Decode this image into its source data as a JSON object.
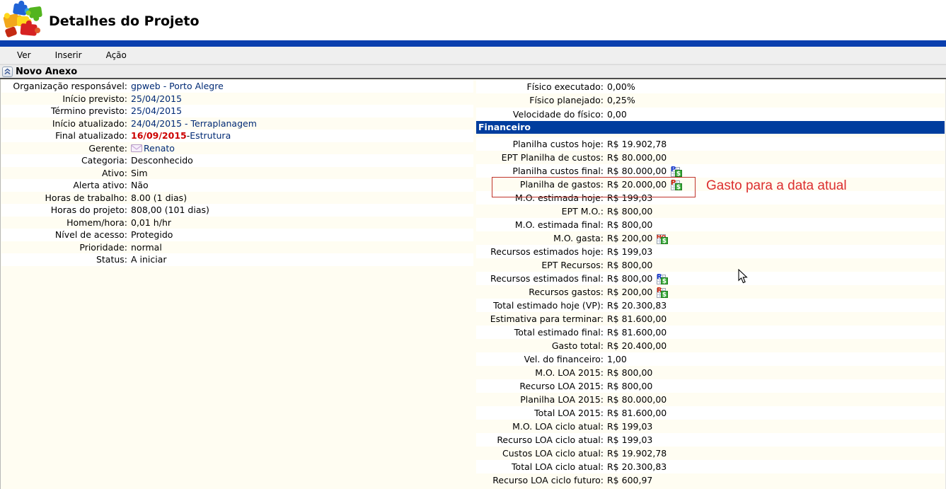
{
  "header": {
    "title": "Detalhes do Projeto"
  },
  "menu": {
    "items": [
      "Ver",
      "Inserir",
      "Ação"
    ]
  },
  "section": {
    "title": "Novo Anexo"
  },
  "project_info": {
    "rows": [
      {
        "label": "Organização responsável:",
        "segments": [
          {
            "text": "gpweb - Porto Alegre",
            "style": "link"
          }
        ]
      },
      {
        "label": "Início previsto:",
        "segments": [
          {
            "text": "25/04/2015",
            "style": "link"
          }
        ]
      },
      {
        "label": "Término previsto:",
        "segments": [
          {
            "text": "25/04/2015",
            "style": "link"
          }
        ]
      },
      {
        "label": "Início atualizado:",
        "segments": [
          {
            "text": "24/04/2015 - Terraplanagem",
            "style": "link"
          }
        ]
      },
      {
        "label": "Final atualizado:",
        "segments": [
          {
            "text": "16/09/2015",
            "style": "alert"
          },
          {
            "text": " - ",
            "style": "plain"
          },
          {
            "text": "Estrutura",
            "style": "link"
          }
        ]
      },
      {
        "label": "Gerente:",
        "segments": [
          {
            "icon": "mail-icon"
          },
          {
            "text": "Renato",
            "style": "link"
          }
        ]
      },
      {
        "label": "Categoria:",
        "segments": [
          {
            "text": "Desconhecido",
            "style": "plain"
          }
        ]
      },
      {
        "label": "Ativo:",
        "segments": [
          {
            "text": "Sim",
            "style": "plain"
          }
        ]
      },
      {
        "label": "Alerta ativo:",
        "segments": [
          {
            "text": "Não",
            "style": "plain"
          }
        ]
      },
      {
        "label": "Horas de trabalho:",
        "segments": [
          {
            "text": "8.00 (1 dias)",
            "style": "plain"
          }
        ]
      },
      {
        "label": "Horas do projeto:",
        "segments": [
          {
            "text": "808,00 (101 dias)",
            "style": "plain"
          }
        ]
      },
      {
        "label": "Homem/hora:",
        "segments": [
          {
            "text": "0,01 h/hr",
            "style": "plain"
          }
        ]
      },
      {
        "label": "Nível de acesso:",
        "segments": [
          {
            "text": "Protegido",
            "style": "plain"
          }
        ]
      },
      {
        "label": "Prioridade:",
        "segments": [
          {
            "text": "normal",
            "style": "plain"
          }
        ]
      },
      {
        "label": "Status:",
        "segments": [
          {
            "text": "A iniciar",
            "style": "plain"
          }
        ]
      }
    ]
  },
  "physical": {
    "rows": [
      {
        "label": "Físico executado:",
        "value": "0,00%"
      },
      {
        "label": "Físico planejado:",
        "value": "0,25%"
      },
      {
        "label": "Velocidade do físico:",
        "value": "0,00"
      }
    ]
  },
  "financial": {
    "section_title": "Financeiro",
    "rows": [
      {
        "label": "Planilha custos hoje:",
        "value": "R$ 19.902,78"
      },
      {
        "label": "EPT Planilha de custos:",
        "value": "R$ 80.000,00"
      },
      {
        "label": "Planilha custos final:",
        "value": "R$ 80.000,00",
        "icon": {
          "name": "planilha-final-sheet-icon",
          "letter": "P",
          "color": "#1f3fd4"
        }
      },
      {
        "label": "Planilha de gastos:",
        "value": "R$ 20.000,00",
        "icon": {
          "name": "planilha-gastos-sheet-icon",
          "letter": "P",
          "color": "#d42a10"
        },
        "highlighted": true
      },
      {
        "label": "M.O. estimada hoje:",
        "value": "R$ 199,03"
      },
      {
        "label": "EPT M.O.:",
        "value": "R$ 800,00"
      },
      {
        "label": "M.O. estimada final:",
        "value": "R$ 800,00"
      },
      {
        "label": "M.O. gasta:",
        "value": "R$ 200,00",
        "icon": {
          "name": "mo-gasta-sheet-icon",
          "letter": "MO",
          "color": "#d42a10"
        }
      },
      {
        "label": "Recursos estimados hoje:",
        "value": "R$ 199,03"
      },
      {
        "label": "EPT Recursos:",
        "value": "R$ 800,00"
      },
      {
        "label": "Recursos estimados final:",
        "value": "R$ 800,00",
        "icon": {
          "name": "recursos-final-sheet-icon",
          "letter": "R",
          "color": "#1f3fd4"
        }
      },
      {
        "label": "Recursos gastos:",
        "value": "R$ 200,00",
        "icon": {
          "name": "recursos-gastos-sheet-icon",
          "letter": "R",
          "color": "#d42a10"
        }
      },
      {
        "label": "Total estimado hoje (VP):",
        "value": "R$ 20.300,83"
      },
      {
        "label": "Estimativa para terminar:",
        "value": "R$ 81.600,00"
      },
      {
        "label": "Total estimado final:",
        "value": "R$ 81.600,00"
      },
      {
        "label": "Gasto total:",
        "value": "R$ 20.400,00"
      },
      {
        "label": "Vel. do financeiro:",
        "value": "1,00"
      },
      {
        "label": "M.O. LOA 2015:",
        "value": "R$ 800,00"
      },
      {
        "label": "Recurso LOA 2015:",
        "value": "R$ 800,00"
      },
      {
        "label": "Planilha LOA 2015:",
        "value": "R$ 80.000,00"
      },
      {
        "label": "Total LOA 2015:",
        "value": "R$ 81.600,00"
      },
      {
        "label": "M.O. LOA ciclo atual:",
        "value": "R$ 199,03"
      },
      {
        "label": "Recurso LOA ciclo atual:",
        "value": "R$ 199,03"
      },
      {
        "label": "Custos LOA ciclo atual:",
        "value": "R$ 19.902,78"
      },
      {
        "label": "Total LOA ciclo atual:",
        "value": "R$ 20.300,83"
      },
      {
        "label": "Recurso LOA ciclo futuro:",
        "value": "R$ 600,97"
      }
    ]
  },
  "annotation": {
    "text": "Gasto para a data atual",
    "color": "#dc2f2f",
    "box_color": "#c0342b"
  },
  "colors": {
    "accent_bar": "#0a3fae",
    "financeiro_bar": "#003d9e",
    "link": "#002a75",
    "alert": "#cc0000",
    "dollar_badge": "#3fae3f"
  }
}
